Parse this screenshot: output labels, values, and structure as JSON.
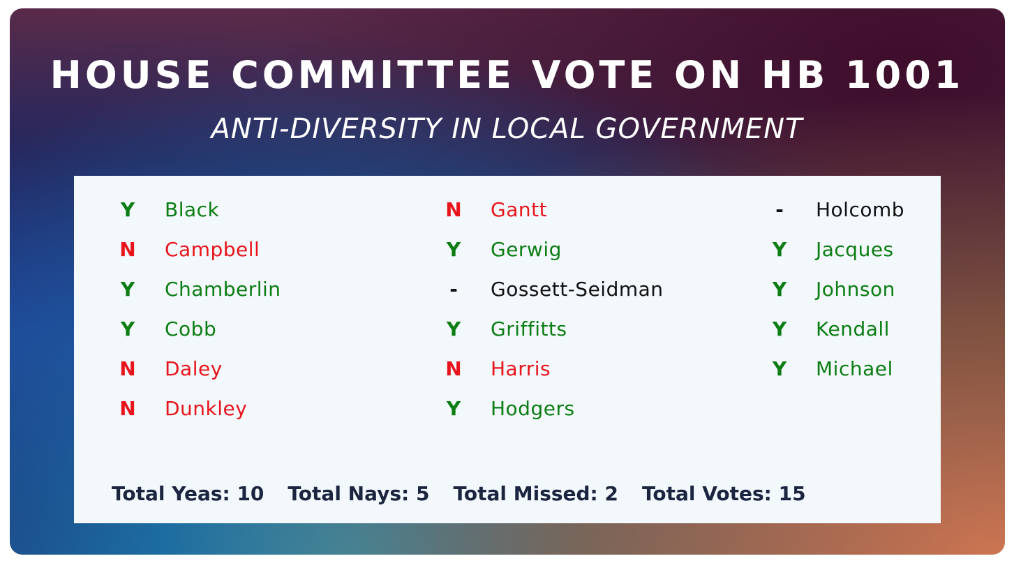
{
  "header": {
    "title": "HOUSE COMMITTEE VOTE ON HB 1001",
    "subtitle": "ANTI-DIVERSITY IN LOCAL GOVERNMENT"
  },
  "columns": [
    [
      {
        "vote": "Y",
        "name": "Black",
        "color": "#0b7d12"
      },
      {
        "vote": "N",
        "name": "Campbell",
        "color": "#e8141b"
      },
      {
        "vote": "Y",
        "name": "Chamberlin",
        "color": "#0b7d12"
      },
      {
        "vote": "Y",
        "name": "Cobb",
        "color": "#0b7d12"
      },
      {
        "vote": "N",
        "name": "Daley",
        "color": "#e8141b"
      },
      {
        "vote": "N",
        "name": "Dunkley",
        "color": "#e8141b"
      }
    ],
    [
      {
        "vote": "N",
        "name": "Gantt",
        "color": "#e8141b"
      },
      {
        "vote": "Y",
        "name": "Gerwig",
        "color": "#0b7d12"
      },
      {
        "vote": "-",
        "name": "Gossett-Seidman",
        "color": "#111111"
      },
      {
        "vote": "Y",
        "name": "Griffitts",
        "color": "#0b7d12"
      },
      {
        "vote": "N",
        "name": "Harris",
        "color": "#e8141b"
      },
      {
        "vote": "Y",
        "name": "Hodgers",
        "color": "#0b7d12"
      }
    ],
    [
      {
        "vote": "-",
        "name": "Holcomb",
        "color": "#111111"
      },
      {
        "vote": "Y",
        "name": "Jacques",
        "color": "#0b7d12"
      },
      {
        "vote": "Y",
        "name": "Johnson",
        "color": "#0b7d12"
      },
      {
        "vote": "Y",
        "name": "Kendall",
        "color": "#0b7d12"
      },
      {
        "vote": "Y",
        "name": "Michael",
        "color": "#0b7d12"
      }
    ]
  ],
  "totals": [
    "Total Yeas: 10",
    "Total Nays: 5",
    "Total Missed: 2",
    "Total Votes: 15"
  ]
}
